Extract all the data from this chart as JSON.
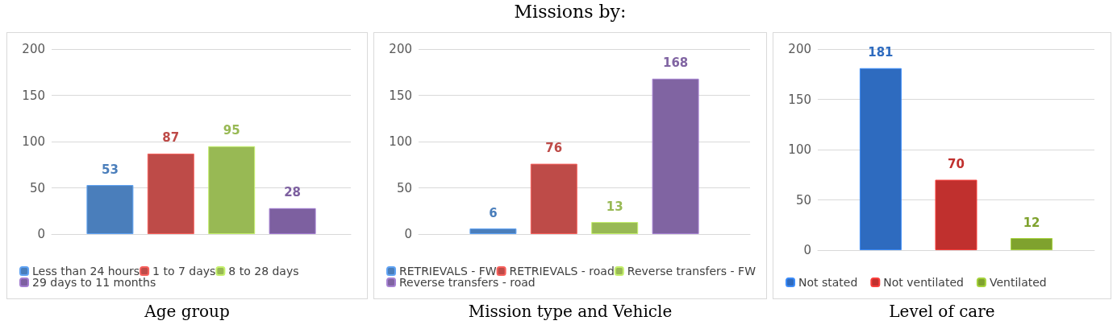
{
  "chart_data": [
    {
      "type": "bar",
      "xlabel": "Age group",
      "categories": [
        null
      ],
      "ylim": [
        0,
        200
      ],
      "yticks": [
        0,
        50,
        100,
        150,
        200
      ],
      "grid": "y",
      "legend": "bottom",
      "data_labels": true,
      "tick_labels": "y",
      "series": [
        {
          "name": "Less than 24 hours",
          "color": "#4a7ebb",
          "values": [
            53
          ]
        },
        {
          "name": "1 to 7 days",
          "color": "#be4b48",
          "values": [
            87
          ]
        },
        {
          "name": "8 to 28 days",
          "color": "#98b954",
          "values": [
            95
          ]
        },
        {
          "name": "29 days to 11 months",
          "color": "#7d60a0",
          "values": [
            28
          ]
        }
      ]
    },
    {
      "type": "bar",
      "title": "Missions by:",
      "xlabel": "Mission type and Vehicle",
      "categories": [
        null
      ],
      "ylim": [
        0,
        200
      ],
      "yticks": [
        0,
        50,
        100,
        150,
        200
      ],
      "grid": "y",
      "legend": "bottom",
      "data_labels": true,
      "tick_labels": "y",
      "series": [
        {
          "name": "RETRIEVALS - FW",
          "color": "#4a7ebb",
          "values": [
            6
          ]
        },
        {
          "name": "RETRIEVALS - road",
          "color": "#be4b48",
          "values": [
            76
          ]
        },
        {
          "name": "Reverse transfers - FW",
          "color": "#98b954",
          "values": [
            13
          ]
        },
        {
          "name": "Reverse transfers - road",
          "color": "#8064a2",
          "values": [
            168
          ]
        }
      ]
    },
    {
      "type": "bar",
      "xlabel": "Level of care",
      "categories": [
        null
      ],
      "ylim": [
        0,
        200
      ],
      "yticks": [
        0,
        50,
        100,
        150,
        200
      ],
      "grid": "y",
      "legend": "bottom",
      "data_labels": true,
      "tick_labels": "y",
      "series": [
        {
          "name": "Not stated",
          "color": "#2e6bbf",
          "values": [
            181
          ]
        },
        {
          "name": "Not ventilated",
          "color": "#c0302e",
          "values": [
            70
          ]
        },
        {
          "name": "Ventilated",
          "color": "#7fa22e",
          "values": [
            12
          ]
        }
      ]
    }
  ]
}
